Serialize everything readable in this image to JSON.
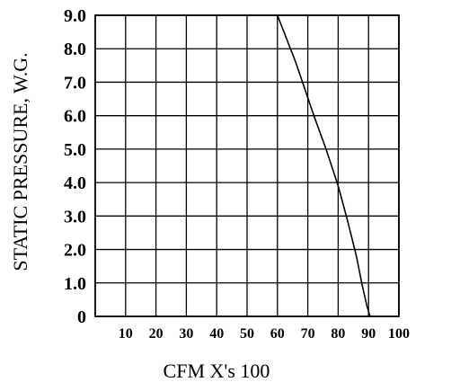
{
  "chart_data": {
    "type": "line",
    "title": "",
    "xlabel": "CFM X's 100",
    "ylabel": "STATIC PRESSURE, W.G.",
    "xlim": [
      0,
      100
    ],
    "ylim": [
      0,
      9
    ],
    "grid": true,
    "x_ticks": [
      "10",
      "20",
      "30",
      "40",
      "50",
      "60",
      "70",
      "80",
      "90",
      "100"
    ],
    "y_ticks": [
      "0",
      "1.0",
      "2.0",
      "3.0",
      "4.0",
      "5.0",
      "6.0",
      "7.0",
      "8.0",
      "9.0"
    ],
    "series": [
      {
        "x": [
          60,
          66,
          72,
          76,
          80,
          83,
          86,
          88,
          89.5,
          90.5
        ],
        "y": [
          9.0,
          7.6,
          6.0,
          5.0,
          3.9,
          2.9,
          1.8,
          0.9,
          0.3,
          0
        ]
      }
    ]
  }
}
